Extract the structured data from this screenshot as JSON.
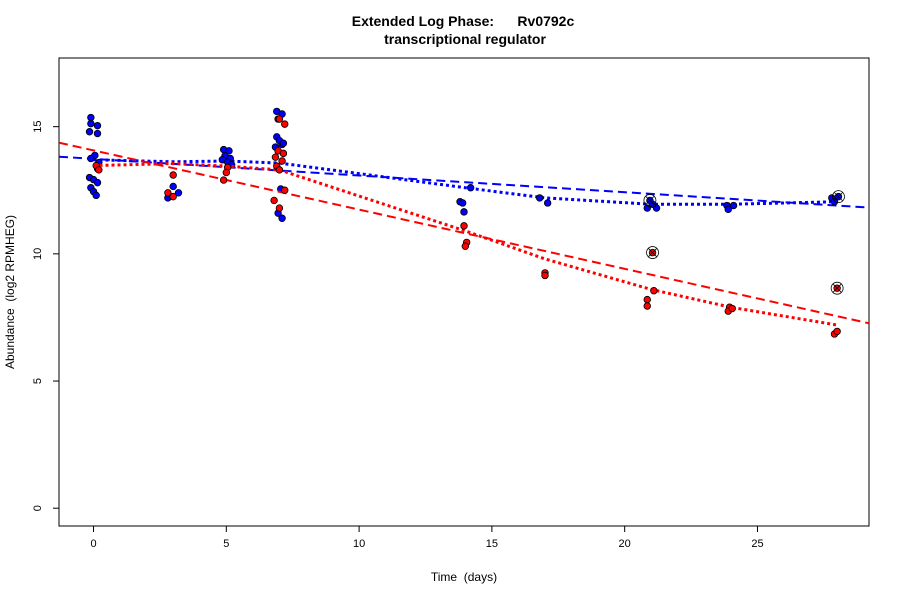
{
  "chart_data": {
    "type": "scatter",
    "title": "Extended Log Phase:      Rv0792c",
    "subtitle": "transcriptional regulator",
    "xlabel": "Time  (days)",
    "ylabel": "Abundance  (log2 RPMHEG)",
    "xlim": [
      -1.3,
      29.2
    ],
    "ylim": [
      -0.7,
      17.7
    ],
    "xticks": [
      0,
      5,
      10,
      15,
      20,
      25
    ],
    "yticks": [
      0,
      5,
      10,
      15
    ],
    "grid": false,
    "series": [
      {
        "color": "#0000ff",
        "points": [
          [
            -0.1,
            15.36
          ],
          [
            -0.1,
            15.12
          ],
          [
            0.15,
            15.04
          ],
          [
            -0.15,
            14.8
          ],
          [
            0.15,
            14.73
          ],
          [
            0.05,
            13.87
          ],
          [
            -0.1,
            13.75
          ],
          [
            0.2,
            13.59
          ],
          [
            0.15,
            13.35
          ],
          [
            -0.15,
            13.0
          ],
          [
            0,
            12.92
          ],
          [
            0.15,
            12.8
          ],
          [
            -0.1,
            12.6
          ],
          [
            0,
            12.45
          ],
          [
            0.1,
            12.3
          ],
          [
            3.0,
            12.65
          ],
          [
            3.2,
            12.4
          ],
          [
            2.8,
            12.2
          ],
          [
            4.9,
            14.1
          ],
          [
            5.1,
            14.05
          ],
          [
            4.95,
            13.85
          ],
          [
            5.15,
            13.75
          ],
          [
            4.85,
            13.7
          ],
          [
            5.05,
            13.6
          ],
          [
            5.2,
            13.5
          ],
          [
            6.9,
            15.6
          ],
          [
            7.1,
            15.5
          ],
          [
            6.95,
            15.3
          ],
          [
            6.9,
            14.6
          ],
          [
            7.0,
            14.45
          ],
          [
            7.1,
            14.3
          ],
          [
            6.85,
            14.2
          ],
          [
            7.15,
            14.35
          ],
          [
            7.05,
            12.55
          ],
          [
            6.95,
            11.6
          ],
          [
            7.1,
            11.4
          ],
          [
            13.8,
            12.05
          ],
          [
            13.9,
            12.0
          ],
          [
            13.95,
            11.65
          ],
          [
            14.2,
            12.6
          ],
          [
            16.8,
            12.2
          ],
          [
            17.1,
            12.0
          ],
          [
            20.85,
            11.8
          ],
          [
            21.2,
            11.8
          ],
          [
            21.05,
            11.95
          ],
          [
            23.85,
            11.9
          ],
          [
            23.9,
            11.75
          ],
          [
            24.1,
            11.9
          ],
          [
            27.8,
            12.2
          ],
          [
            27.9,
            12.05
          ]
        ],
        "flagged": [
          [
            20.95,
            12.1
          ],
          [
            28.05,
            12.25
          ]
        ],
        "trend_linear": [
          [
            -1.3,
            13.82
          ],
          [
            29.2,
            11.82
          ]
        ],
        "trend_median": [
          [
            0,
            13.7
          ],
          [
            3,
            13.62
          ],
          [
            5,
            13.65
          ],
          [
            7,
            13.57
          ],
          [
            14,
            12.6
          ],
          [
            17,
            12.2
          ],
          [
            21,
            11.95
          ],
          [
            24,
            11.95
          ],
          [
            28,
            12.05
          ]
        ]
      },
      {
        "color": "#ff0000",
        "points": [
          [
            0.1,
            13.47
          ],
          [
            0.2,
            13.3
          ],
          [
            3.0,
            13.1
          ],
          [
            2.8,
            12.4
          ],
          [
            3.0,
            12.25
          ],
          [
            5.05,
            13.4
          ],
          [
            5.0,
            13.2
          ],
          [
            4.9,
            12.9
          ],
          [
            7.0,
            15.3
          ],
          [
            7.2,
            15.1
          ],
          [
            6.95,
            14.05
          ],
          [
            7.15,
            13.95
          ],
          [
            6.85,
            13.8
          ],
          [
            7.1,
            13.65
          ],
          [
            6.9,
            13.45
          ],
          [
            7.0,
            13.3
          ],
          [
            7.2,
            12.5
          ],
          [
            6.8,
            12.1
          ],
          [
            7.0,
            11.8
          ],
          [
            13.95,
            11.1
          ],
          [
            14.05,
            10.45
          ],
          [
            14.0,
            10.3
          ],
          [
            17.0,
            9.25
          ],
          [
            17.0,
            9.15
          ],
          [
            21.1,
            8.55
          ],
          [
            20.85,
            8.2
          ],
          [
            20.85,
            7.95
          ],
          [
            23.95,
            7.9
          ],
          [
            23.9,
            7.75
          ],
          [
            24.05,
            7.85
          ],
          [
            27.9,
            6.85
          ],
          [
            28.0,
            6.95
          ]
        ],
        "flagged": [
          [
            21.05,
            10.05
          ],
          [
            28.0,
            8.65
          ]
        ],
        "trend_linear": [
          [
            -1.3,
            14.37
          ],
          [
            29.2,
            7.27
          ]
        ],
        "trend_median": [
          [
            0,
            13.47
          ],
          [
            3,
            13.55
          ],
          [
            5,
            13.45
          ],
          [
            7,
            13.3
          ],
          [
            14,
            10.9
          ],
          [
            17,
            9.8
          ],
          [
            21,
            8.6
          ],
          [
            24,
            7.9
          ],
          [
            28,
            7.2
          ]
        ]
      }
    ]
  }
}
